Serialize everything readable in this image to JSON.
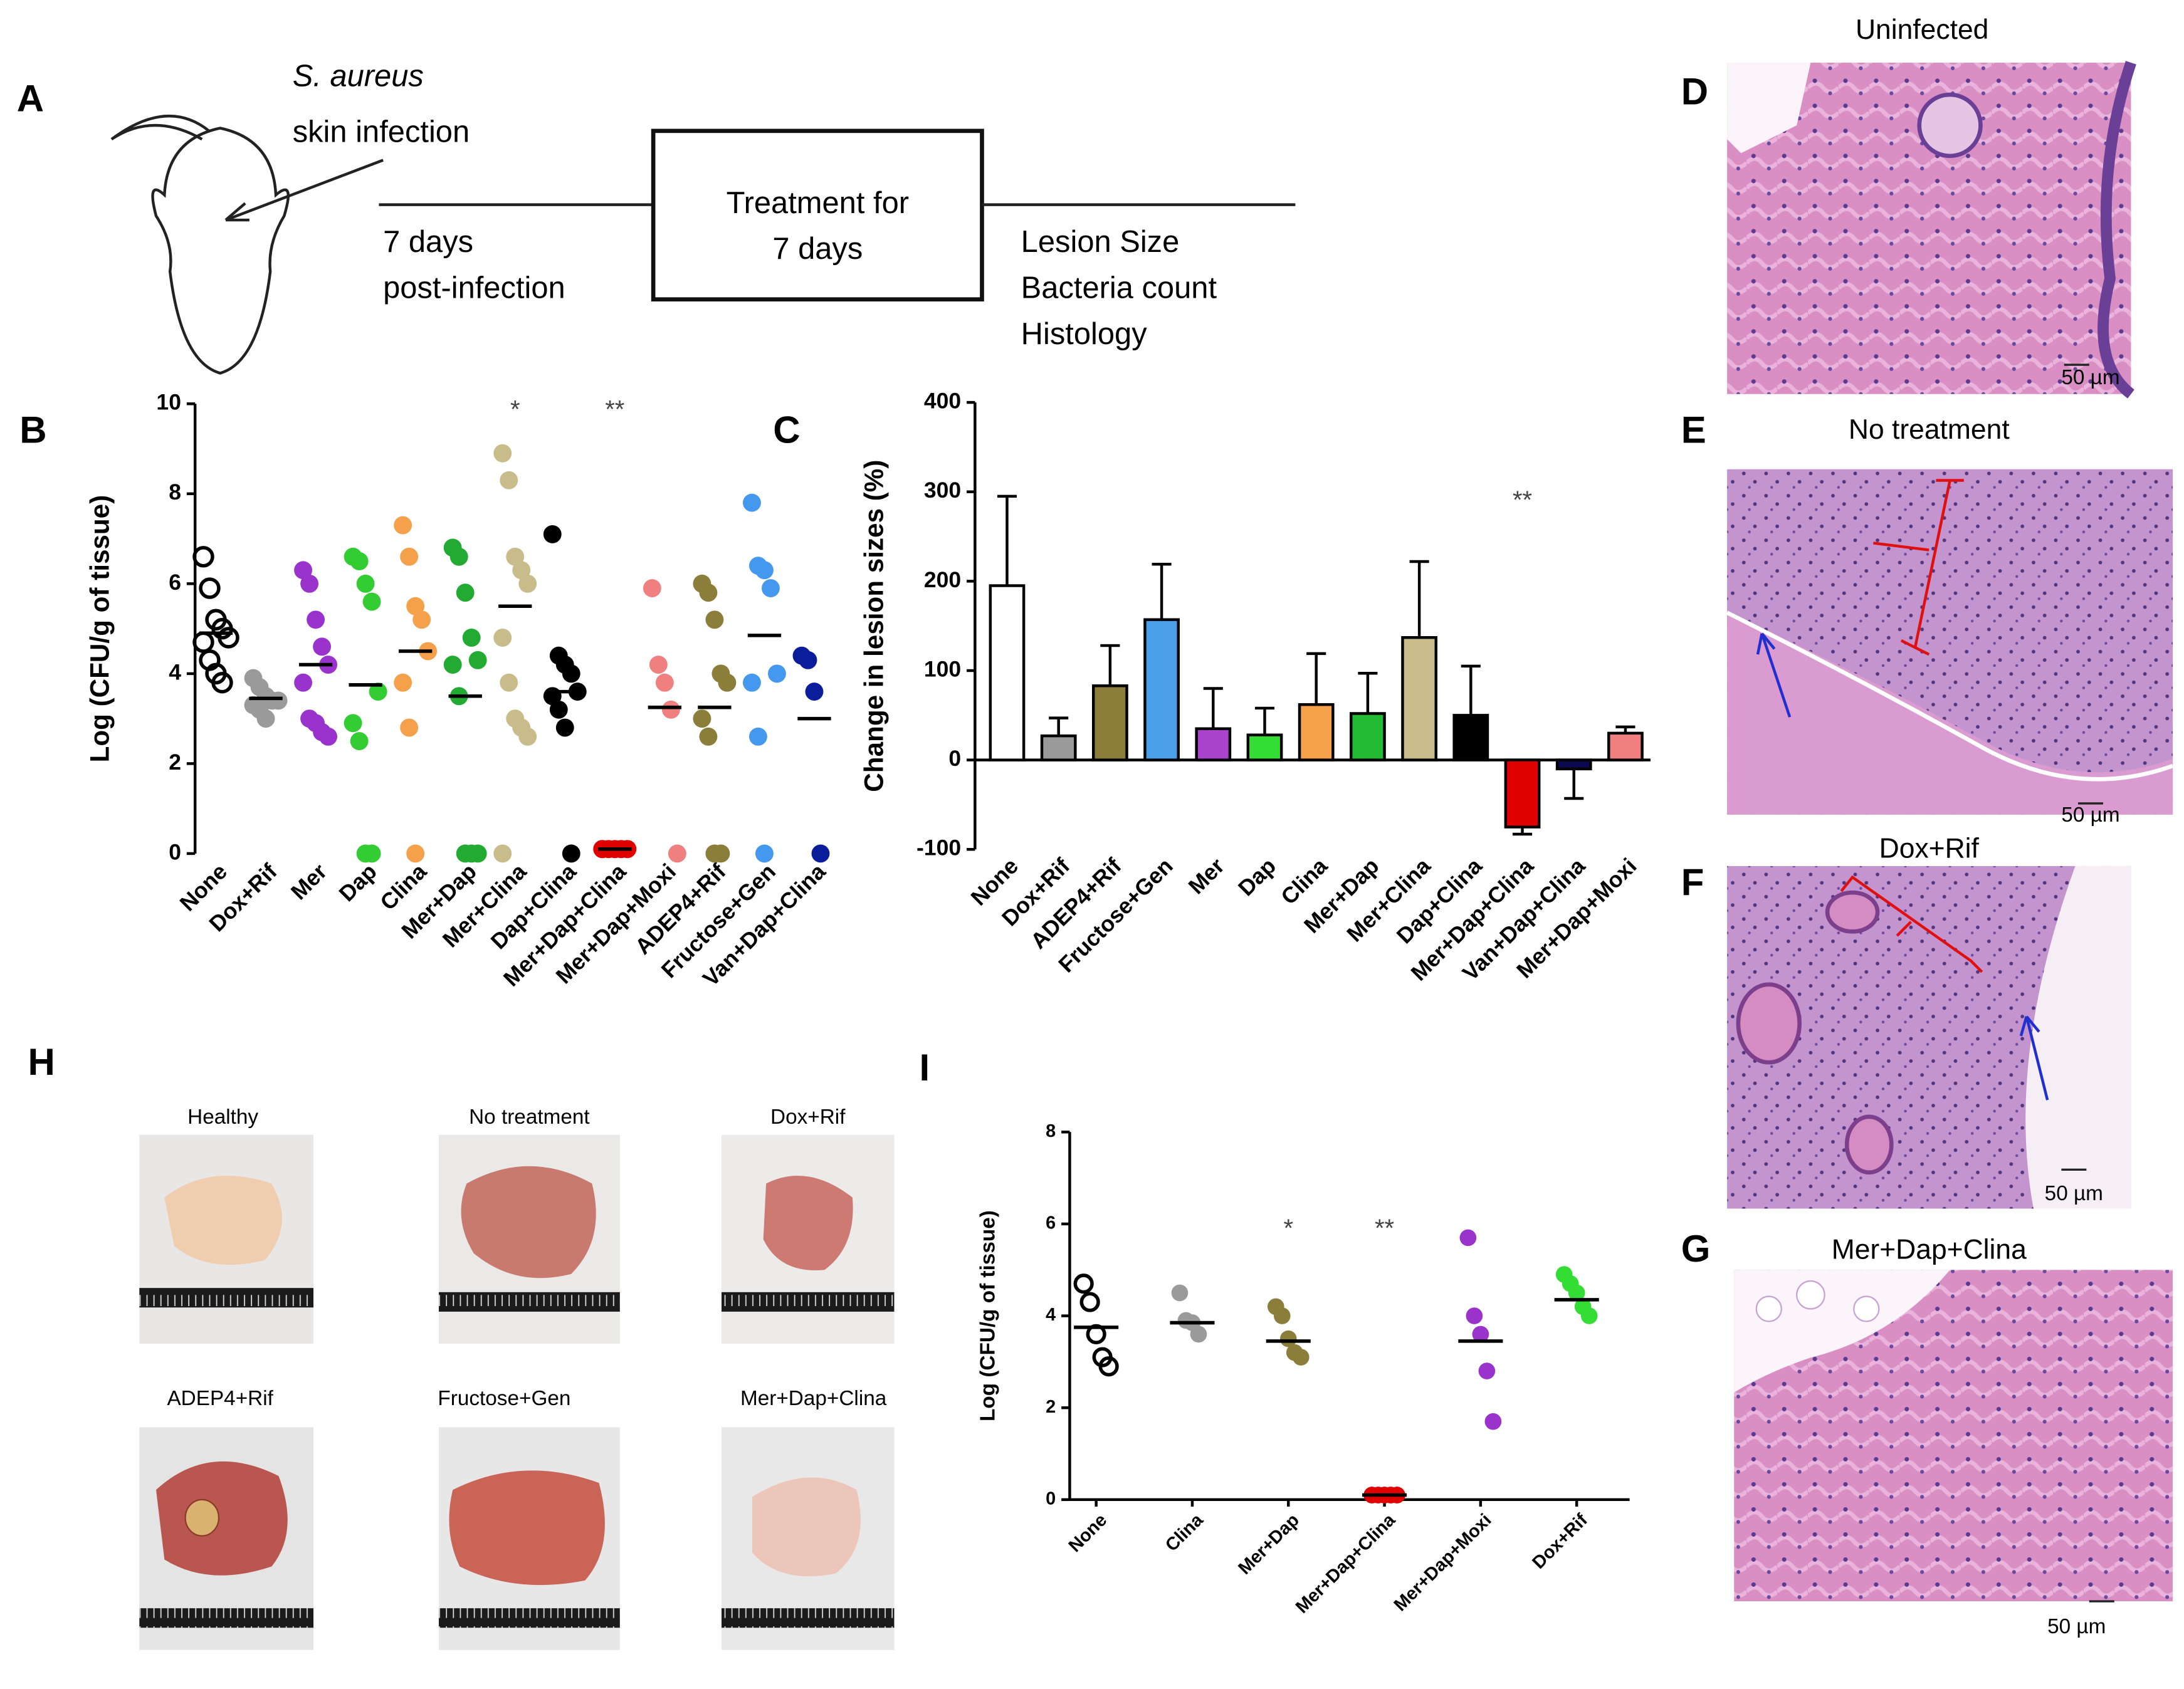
{
  "schematic": {
    "label": "A",
    "organism": "S. aureus",
    "infection": "skin infection",
    "phase1": [
      "7 days",
      "post-infection"
    ],
    "treatment": [
      "Treatment for",
      "7 days"
    ],
    "readouts": [
      "Lesion Size",
      "Bacteria count",
      "Histology"
    ]
  },
  "chart_data": [
    {
      "type": "strip",
      "panel": "B",
      "ylabel": "Log (CFU/g of tissue)",
      "categories": [
        "None",
        "Dox+Rif",
        "Mer",
        "Dap",
        "Clina",
        "Mer+Dap",
        "Mer+Clina",
        "Dap+Clina",
        "Mer+Dap+Clina",
        "Mer+Dap+Moxi",
        "ADEP4+Rif",
        "Fructose+Gen",
        "Van+Dap+Clina"
      ],
      "points": [
        [
          6.6,
          5.9,
          5.2,
          5.0,
          4.8,
          4.7,
          4.3,
          4.0,
          3.8
        ],
        [
          3.9,
          3.7,
          3.5,
          3.4,
          3.4,
          3.3,
          3.2,
          3.0
        ],
        [
          6.3,
          6.0,
          5.2,
          4.6,
          4.2,
          3.8,
          3.0,
          2.9,
          2.7,
          2.6
        ],
        [
          6.6,
          6.5,
          6.0,
          5.6,
          3.6,
          2.9,
          2.5,
          0,
          0
        ],
        [
          7.3,
          6.6,
          5.5,
          5.2,
          4.5,
          3.8,
          2.8,
          0
        ],
        [
          6.8,
          6.6,
          5.8,
          4.8,
          4.3,
          4.2,
          3.5,
          0,
          0,
          0
        ],
        [
          8.9,
          8.3,
          6.6,
          6.3,
          6.0,
          4.8,
          3.8,
          3.0,
          2.8,
          2.6,
          0
        ],
        [
          7.1,
          4.4,
          4.2,
          4.0,
          3.6,
          3.5,
          3.2,
          2.8,
          0
        ],
        [
          0.1,
          0.1,
          0.1,
          0.1,
          0.1,
          0.1
        ],
        [
          5.9,
          4.2,
          3.8,
          3.2,
          0
        ],
        [
          6.0,
          5.8,
          5.2,
          4.0,
          3.8,
          3.0,
          2.6,
          0,
          0
        ],
        [
          7.8,
          6.4,
          6.3,
          5.9,
          4.0,
          3.8,
          2.6,
          0
        ],
        [
          4.4,
          4.3,
          3.6,
          0
        ]
      ],
      "means": [
        4.9,
        3.45,
        4.2,
        3.75,
        4.5,
        3.5,
        5.5,
        3.6,
        0.1,
        3.25,
        3.25,
        4.85,
        3.0
      ],
      "colors": [
        "#000000",
        "#9a9a9a",
        "#9933cc",
        "#33cc33",
        "#f5a04a",
        "#22aa33",
        "#c8bc8a",
        "#000000",
        "#e00000",
        "#f08080",
        "#8b7d3a",
        "#4499ee",
        "#0a1e9c"
      ],
      "hollow": [
        true,
        false,
        false,
        false,
        false,
        false,
        false,
        false,
        false,
        false,
        false,
        false,
        false
      ],
      "significance": [
        null,
        null,
        null,
        null,
        null,
        null,
        "*",
        null,
        "**",
        null,
        null,
        null,
        null
      ],
      "ylim": [
        0,
        10
      ],
      "yticks": [
        0,
        2,
        4,
        6,
        8,
        10
      ]
    },
    {
      "type": "bar",
      "panel": "C",
      "ylabel": "Change in lesion sizes  (%)",
      "categories": [
        "None",
        "Dox+Rif",
        "ADEP4+Rif",
        "Fructose+Gen",
        "Mer",
        "Dap",
        "Clina",
        "Mer+Dap",
        "Mer+Clina",
        "Dap+Clina",
        "Mer+Dap+Clina",
        "Van+Dap+Clina",
        "Mer+Dap+Moxi"
      ],
      "values": [
        195,
        27,
        83,
        157,
        35,
        28,
        62,
        52,
        137,
        50,
        -75,
        -10,
        30
      ],
      "errors": [
        100,
        20,
        45,
        62,
        45,
        30,
        57,
        45,
        85,
        55,
        8,
        33,
        7
      ],
      "colors": [
        "#ffffff",
        "#9a9a9a",
        "#8b7d3a",
        "#4a9fe8",
        "#aa44cc",
        "#33dd33",
        "#f5a04a",
        "#22bb33",
        "#c8bc8a",
        "#000000",
        "#e00000",
        "#0a0a50",
        "#f08080"
      ],
      "significance": [
        null,
        null,
        null,
        null,
        null,
        null,
        null,
        null,
        null,
        null,
        "**",
        null,
        null
      ],
      "ylim": [
        -100,
        400
      ],
      "yticks": [
        -100,
        0,
        100,
        200,
        300,
        400
      ]
    },
    {
      "type": "strip",
      "panel": "I",
      "ylabel": "Log (CFU/g of tissue)",
      "categories": [
        "None",
        "Clina",
        "Mer+Dap",
        "Mer+Dap+Clina",
        "Mer+Dap+Moxi",
        "Dox+Rif"
      ],
      "points": [
        [
          4.7,
          4.3,
          3.6,
          3.1,
          2.9
        ],
        [
          4.5,
          3.9,
          3.85,
          3.6
        ],
        [
          4.2,
          4.0,
          3.5,
          3.2,
          3.1
        ],
        [
          0.1,
          0.1,
          0.1,
          0.1,
          0.1
        ],
        [
          5.7,
          4.0,
          3.6,
          2.8,
          1.7
        ],
        [
          4.9,
          4.7,
          4.5,
          4.2,
          4.0
        ]
      ],
      "means": [
        3.75,
        3.85,
        3.45,
        0.1,
        3.45,
        4.35
      ],
      "colors": [
        "#000000",
        "#9a9a9a",
        "#8b7d3a",
        "#e00000",
        "#9933cc",
        "#33dd33"
      ],
      "hollow": [
        true,
        false,
        false,
        false,
        false,
        false
      ],
      "significance": [
        null,
        null,
        "*",
        "**",
        null,
        null
      ],
      "ylim": [
        0,
        8
      ],
      "yticks": [
        0,
        2,
        4,
        6,
        8
      ]
    }
  ],
  "photos": {
    "label": "H",
    "captions": [
      "Healthy",
      "No treatment",
      "Dox+Rif",
      "ADEP4+Rif",
      "Fructose+Gen",
      "Mer+Dap+Clina"
    ]
  },
  "histology": [
    {
      "label": "D",
      "title": "Uninfected",
      "scale": "50 µm"
    },
    {
      "label": "E",
      "title": "No treatment",
      "scale": "50 µm"
    },
    {
      "label": "F",
      "title": "Dox+Rif",
      "scale": "50 µm"
    },
    {
      "label": "G",
      "title": "Mer+Dap+Clina",
      "scale": "50 µm"
    }
  ]
}
